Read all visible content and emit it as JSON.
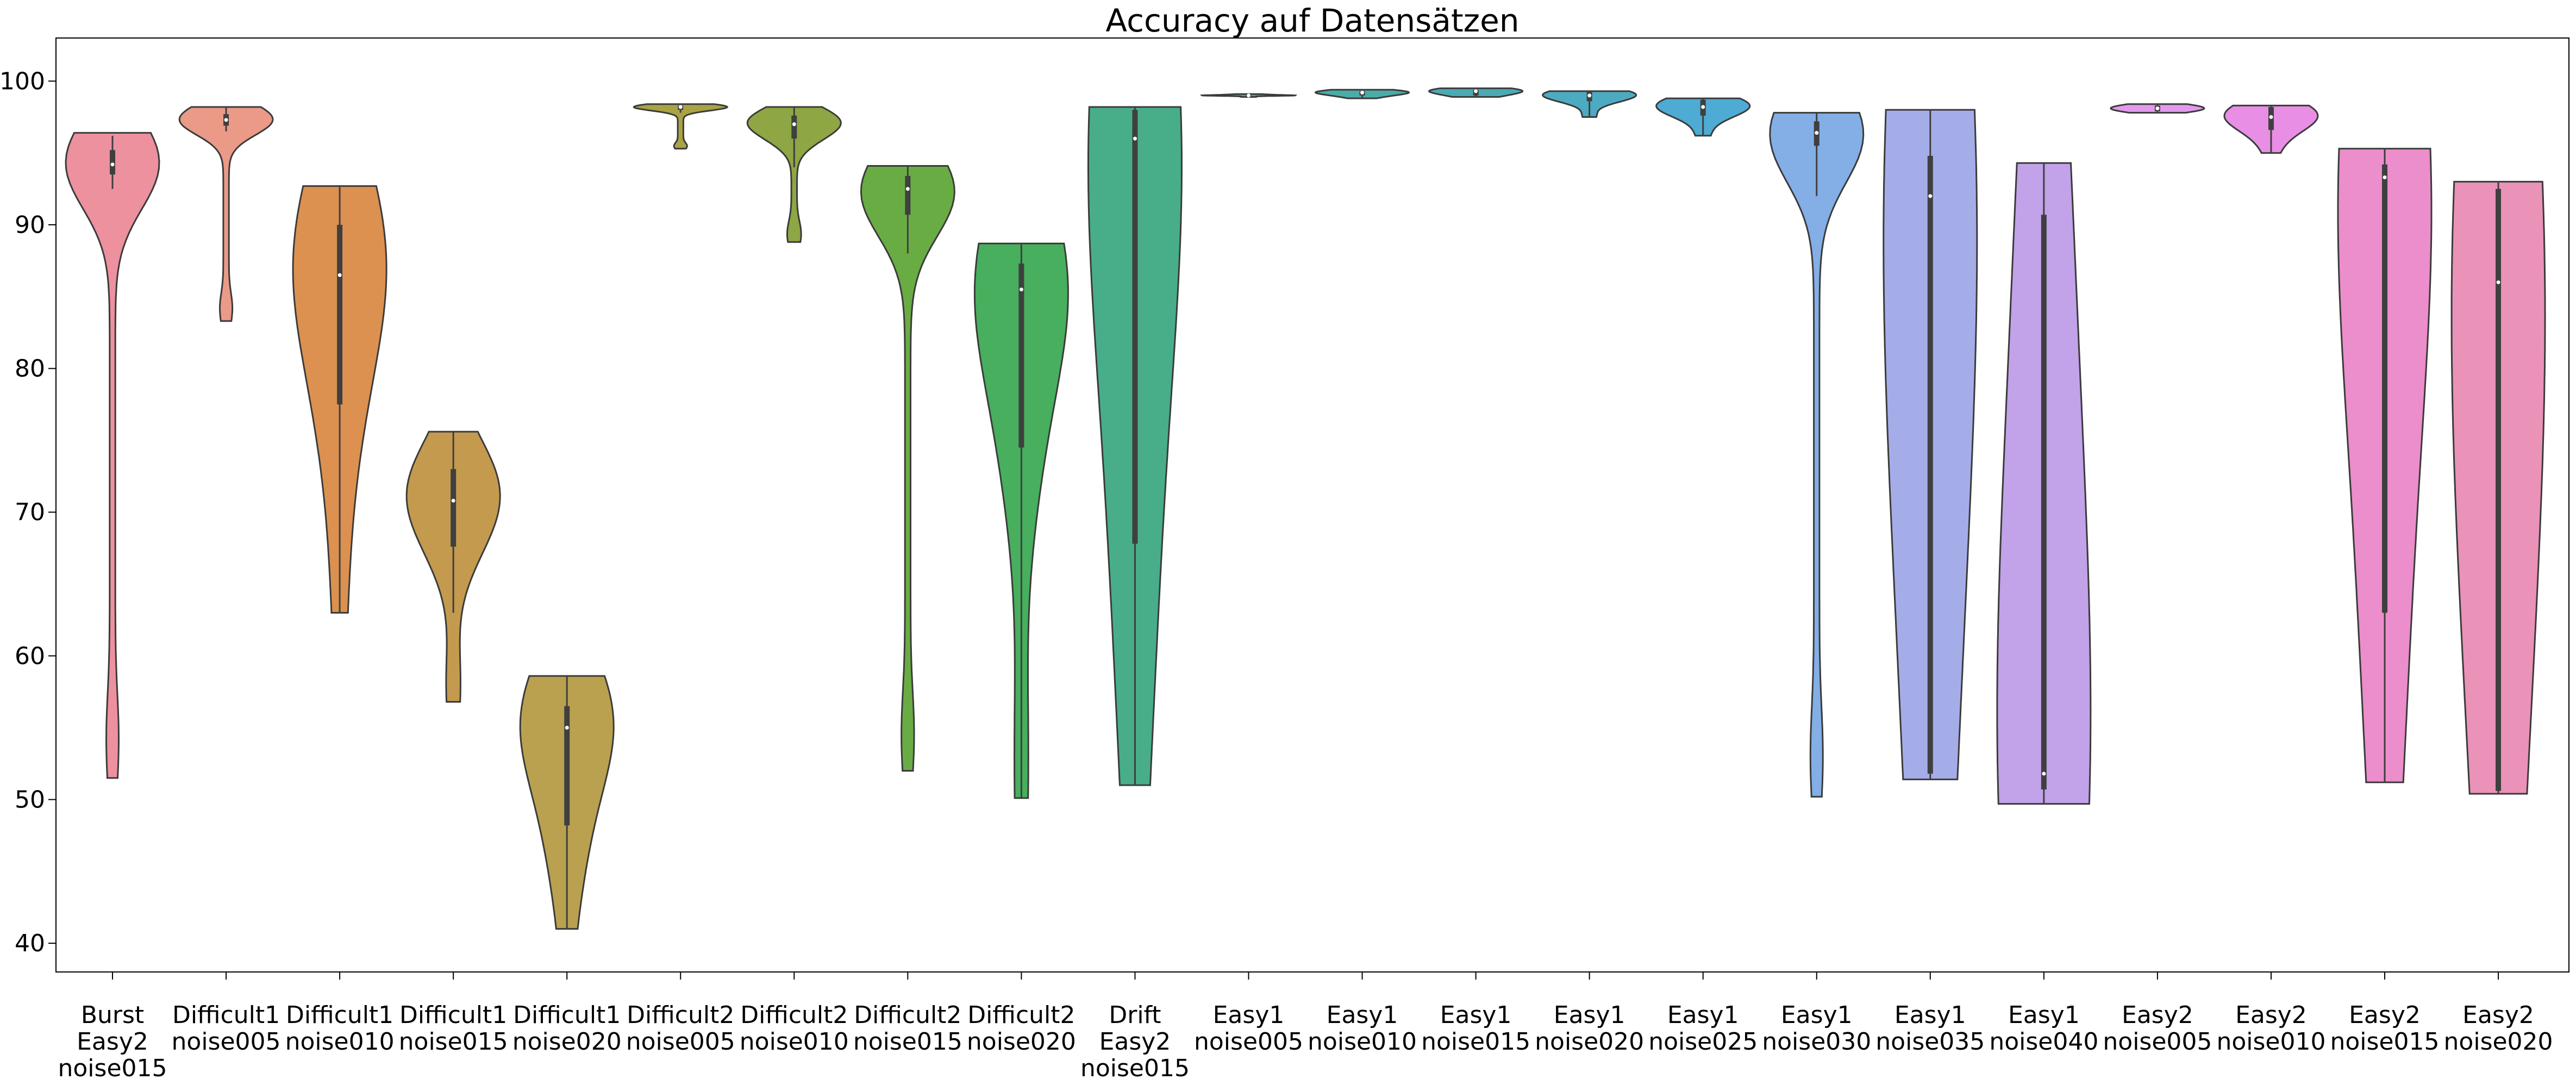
{
  "chart_data": {
    "type": "violin",
    "title": "Accuracy auf Datensätzen",
    "xlabel": "",
    "ylabel": "",
    "ylim": [
      38,
      103
    ],
    "yticks": [
      40,
      50,
      60,
      70,
      80,
      90,
      100
    ],
    "grid": false,
    "series": [
      {
        "label": [
          "Burst",
          "Easy2",
          "noise015"
        ],
        "color": "#ed919f",
        "min": 51.5,
        "max": 96.4,
        "q1": 93.5,
        "median": 94.2,
        "q3": 95.2,
        "whisker_low": 92.5,
        "whisker_high": 96.2
      },
      {
        "label": [
          "Difficult1",
          "noise005"
        ],
        "color": "#eb9a88",
        "min": 83.3,
        "max": 98.2,
        "q1": 96.9,
        "median": 97.3,
        "q3": 97.7,
        "whisker_low": 96.5,
        "whisker_high": 98.2
      },
      {
        "label": [
          "Difficult1",
          "noise010"
        ],
        "color": "#dc9150",
        "min": 63.0,
        "max": 92.7,
        "q1": 77.5,
        "median": 86.5,
        "q3": 90.0,
        "whisker_low": 63.0,
        "whisker_high": 92.7
      },
      {
        "label": [
          "Difficult1",
          "noise015"
        ],
        "color": "#c49a4f",
        "min": 56.8,
        "max": 75.6,
        "q1": 67.6,
        "median": 70.8,
        "q3": 73.0,
        "whisker_low": 63.0,
        "whisker_high": 75.6
      },
      {
        "label": [
          "Difficult1",
          "noise020"
        ],
        "color": "#b9a14f",
        "min": 41.0,
        "max": 58.6,
        "q1": 48.2,
        "median": 55.0,
        "q3": 56.5,
        "whisker_low": 41.0,
        "whisker_high": 58.6
      },
      {
        "label": [
          "Difficult2",
          "noise005"
        ],
        "color": "#a9a443",
        "min": 95.3,
        "max": 98.4,
        "q1": 98.0,
        "median": 98.2,
        "q3": 98.3,
        "whisker_low": 97.8,
        "whisker_high": 98.4
      },
      {
        "label": [
          "Difficult2",
          "noise010"
        ],
        "color": "#8ea643",
        "min": 88.8,
        "max": 98.2,
        "q1": 96.0,
        "median": 97.0,
        "q3": 97.6,
        "whisker_low": 94.0,
        "whisker_high": 98.2
      },
      {
        "label": [
          "Difficult2",
          "noise015"
        ],
        "color": "#6aac44",
        "min": 52.0,
        "max": 94.1,
        "q1": 90.7,
        "median": 92.5,
        "q3": 93.4,
        "whisker_low": 88.0,
        "whisker_high": 94.1
      },
      {
        "label": [
          "Difficult2",
          "noise020"
        ],
        "color": "#47af5d",
        "min": 50.1,
        "max": 88.7,
        "q1": 74.5,
        "median": 85.5,
        "q3": 87.3,
        "whisker_low": 50.1,
        "whisker_high": 88.7
      },
      {
        "label": [
          "Drift",
          "Easy2",
          "noise015"
        ],
        "color": "#48ae89",
        "min": 51.0,
        "max": 98.2,
        "q1": 67.8,
        "median": 96.0,
        "q3": 98.0,
        "whisker_low": 51.0,
        "whisker_high": 98.2
      },
      {
        "label": [
          "Easy1",
          "noise005"
        ],
        "color": "#49ad9c",
        "min": 98.9,
        "max": 99.1,
        "q1": 99.0,
        "median": 99.0,
        "q3": 99.05,
        "whisker_low": 98.9,
        "whisker_high": 99.1
      },
      {
        "label": [
          "Easy1",
          "noise010"
        ],
        "color": "#4aaca7",
        "min": 98.8,
        "max": 99.4,
        "q1": 99.0,
        "median": 99.2,
        "q3": 99.3,
        "whisker_low": 98.8,
        "whisker_high": 99.4
      },
      {
        "label": [
          "Easy1",
          "noise015"
        ],
        "color": "#4aabb3",
        "min": 98.9,
        "max": 99.5,
        "q1": 99.0,
        "median": 99.3,
        "q3": 99.4,
        "whisker_low": 98.9,
        "whisker_high": 99.5
      },
      {
        "label": [
          "Easy1",
          "noise020"
        ],
        "color": "#4cabc1",
        "min": 97.5,
        "max": 99.3,
        "q1": 98.6,
        "median": 99.0,
        "q3": 99.3,
        "whisker_low": 97.5,
        "whisker_high": 99.3
      },
      {
        "label": [
          "Easy1",
          "noise025"
        ],
        "color": "#4eabd3",
        "min": 96.2,
        "max": 98.8,
        "q1": 97.6,
        "median": 98.2,
        "q3": 98.7,
        "whisker_low": 96.2,
        "whisker_high": 98.8
      },
      {
        "label": [
          "Easy1",
          "noise030"
        ],
        "color": "#83afe6",
        "min": 50.2,
        "max": 97.8,
        "q1": 95.5,
        "median": 96.4,
        "q3": 97.2,
        "whisker_low": 92.0,
        "whisker_high": 97.8
      },
      {
        "label": [
          "Easy1",
          "noise035"
        ],
        "color": "#a5ade9",
        "min": 51.4,
        "max": 98.0,
        "q1": 51.8,
        "median": 92.0,
        "q3": 94.8,
        "whisker_low": 51.4,
        "whisker_high": 98.0
      },
      {
        "label": [
          "Easy1",
          "noise040"
        ],
        "color": "#c2a2e9",
        "min": 49.7,
        "max": 94.3,
        "q1": 50.7,
        "median": 51.8,
        "q3": 90.7,
        "whisker_low": 49.7,
        "whisker_high": 94.3
      },
      {
        "label": [
          "Easy2",
          "noise005"
        ],
        "color": "#e39aec",
        "min": 97.8,
        "max": 98.4,
        "q1": 97.9,
        "median": 98.1,
        "q3": 98.3,
        "whisker_low": 97.8,
        "whisker_high": 98.4
      },
      {
        "label": [
          "Easy2",
          "noise010"
        ],
        "color": "#e88ee4",
        "min": 95.0,
        "max": 98.3,
        "q1": 96.6,
        "median": 97.5,
        "q3": 98.2,
        "whisker_low": 95.0,
        "whisker_high": 98.3
      },
      {
        "label": [
          "Easy2",
          "noise015"
        ],
        "color": "#eb8ecb",
        "min": 51.2,
        "max": 95.3,
        "q1": 63.0,
        "median": 93.3,
        "q3": 94.2,
        "whisker_low": 51.2,
        "whisker_high": 95.3
      },
      {
        "label": [
          "Easy2",
          "noise020"
        ],
        "color": "#ea92b8",
        "min": 50.4,
        "max": 93.0,
        "q1": 50.6,
        "median": 86.0,
        "q3": 92.5,
        "whisker_low": 50.4,
        "whisker_high": 93.0
      }
    ]
  }
}
